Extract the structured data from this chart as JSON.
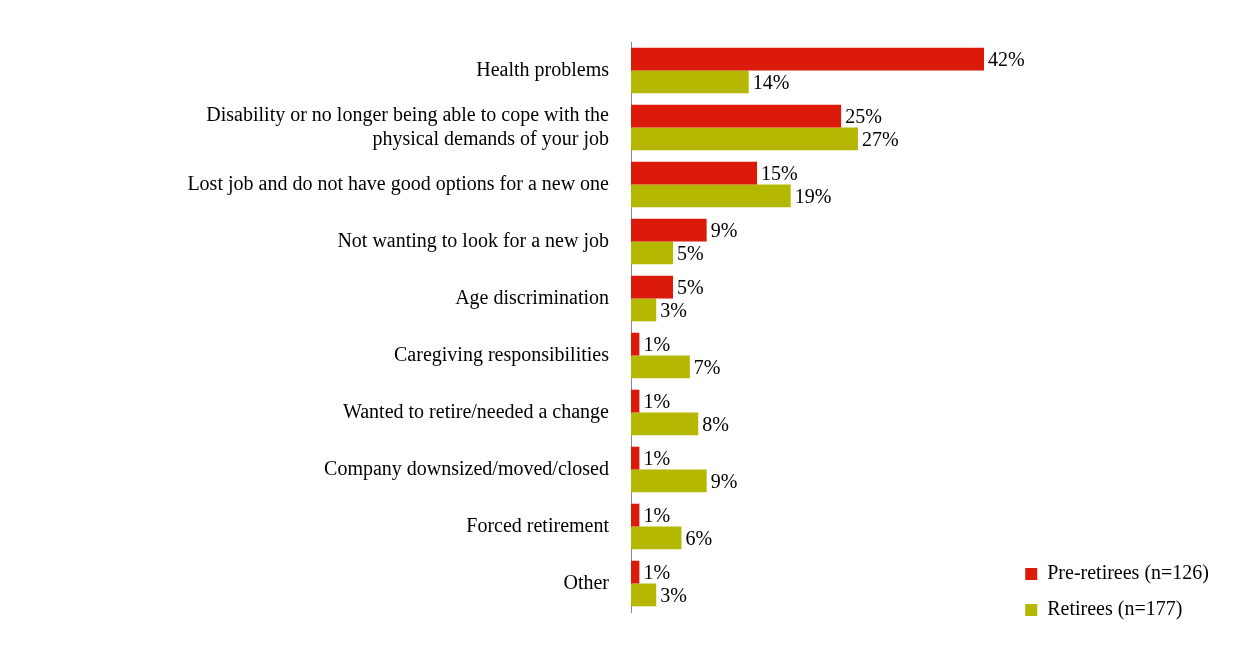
{
  "chart_data": {
    "type": "bar",
    "orientation": "horizontal",
    "legend": "bottom right",
    "categories": [
      "Health problems",
      "Disability or no longer being able to cope with the physical demands of your job",
      "Lost job and do not have good options for a new one",
      "Not wanting to look for a new job",
      "Age discrimination",
      "Caregiving responsibilities",
      "Wanted to retire/needed a change",
      "Company downsized/moved/closed",
      "Forced retirement",
      "Other"
    ],
    "series": [
      {
        "name": "Pre-retirees (n=126)",
        "color": "#dc1a0a",
        "values": [
          42,
          25,
          15,
          9,
          5,
          1,
          1,
          1,
          1,
          1
        ],
        "value_labels": [
          "42%",
          "25%",
          "15%",
          "9%",
          "5%",
          "1%",
          "1%",
          "1%",
          "1%",
          "1%"
        ]
      },
      {
        "name": "Retirees (n=177)",
        "color": "#b4b800",
        "values": [
          14,
          27,
          19,
          5,
          3,
          7,
          8,
          9,
          6,
          3
        ],
        "value_labels": [
          "14%",
          "27%",
          "19%",
          "5%",
          "3%",
          "7%",
          "8%",
          "9%",
          "6%",
          "3%"
        ]
      }
    ]
  }
}
